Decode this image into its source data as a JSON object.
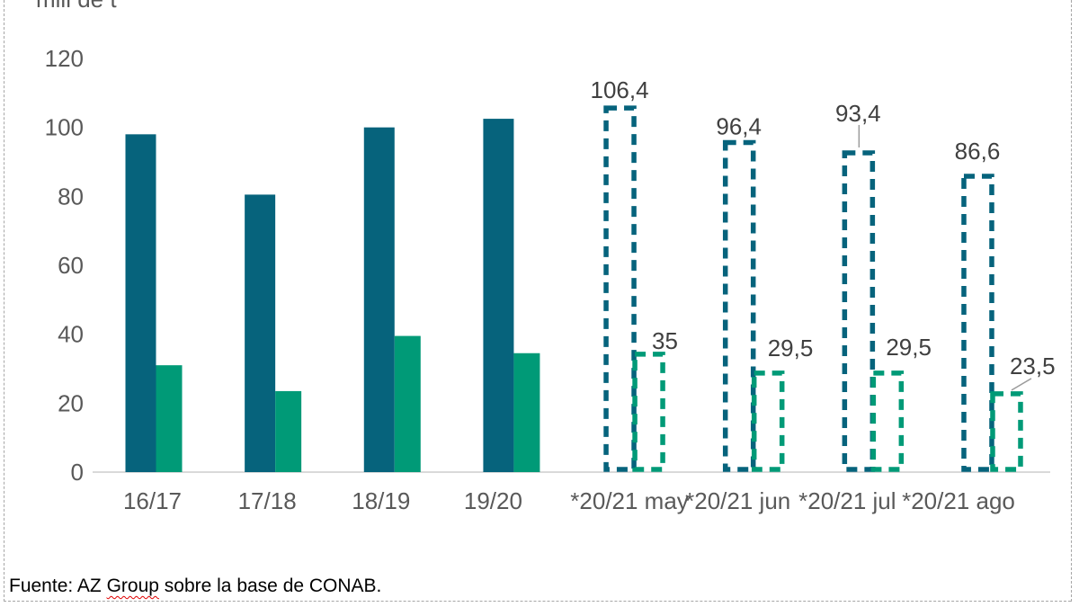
{
  "source": {
    "prefix": "Fuente: AZ ",
    "word_flagged": "Group",
    "suffix": " sobre la base de CONAB."
  },
  "frame": {
    "border_color": "#A6A6A6"
  },
  "chart_data": {
    "type": "bar",
    "title": "",
    "ylabel": "mill de t",
    "xlabel": "",
    "ylim": [
      0,
      120
    ],
    "yticks": [
      0,
      20,
      40,
      60,
      80,
      100,
      120
    ],
    "grid": false,
    "legend": "none",
    "categories": [
      "16/17",
      "17/18",
      "18/19",
      "19/20",
      "*20/21 may",
      "*20/21 jun",
      "*20/21 jul",
      "*20/21 ago"
    ],
    "dashed_from_index": 4,
    "series": [
      {
        "name": "series-dark-teal",
        "color": "#06637C",
        "values": [
          98,
          80.5,
          100,
          102.5,
          106.4,
          96.4,
          93.4,
          86.6
        ]
      },
      {
        "name": "series-green",
        "color": "#009A77",
        "values": [
          31,
          23.5,
          39.5,
          34.5,
          35,
          29.5,
          29.5,
          23.5
        ]
      }
    ],
    "annotations": [
      {
        "series": 0,
        "index": 4,
        "text": "106,4",
        "leader": ""
      },
      {
        "series": 0,
        "index": 5,
        "text": "96,4",
        "leader": ""
      },
      {
        "series": 0,
        "index": 6,
        "text": "93,4",
        "leader": "vertical"
      },
      {
        "series": 0,
        "index": 7,
        "text": "86,6",
        "leader": ""
      },
      {
        "series": 1,
        "index": 4,
        "text": "35",
        "leader": ""
      },
      {
        "series": 1,
        "index": 5,
        "text": "29,5",
        "leader": ""
      },
      {
        "series": 1,
        "index": 6,
        "text": "29,5",
        "leader": ""
      },
      {
        "series": 1,
        "index": 7,
        "text": "23,5",
        "leader": "diagonal"
      }
    ],
    "axis_colors": {
      "baseline": "#D9D9D9",
      "tick_text": "#595959",
      "data_label_text": "#404040",
      "leader_line": "#9B9B9B"
    }
  }
}
